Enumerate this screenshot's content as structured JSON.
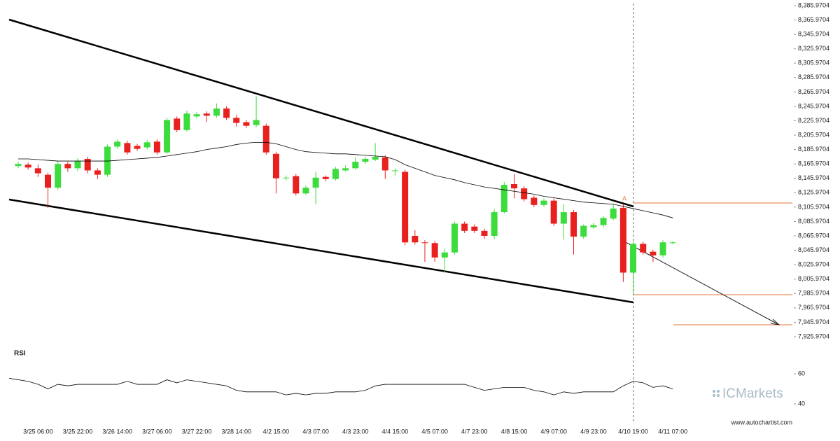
{
  "chart_data": {
    "type": "candlestick",
    "categories": [
      null,
      null,
      "3/25 06:00",
      null,
      null,
      null,
      "3/25 22:00",
      null,
      null,
      null,
      "3/26 14:00",
      null,
      null,
      null,
      "3/27 06:00",
      null,
      null,
      null,
      "3/27 22:00",
      null,
      null,
      null,
      "3/28 14:00",
      null,
      null,
      null,
      "4/2 15:00",
      null,
      null,
      null,
      "4/3 07:00",
      null,
      null,
      null,
      "4/3 23:00",
      null,
      null,
      null,
      "4/4 15:00",
      null,
      null,
      null,
      "4/5 07:00",
      null,
      null,
      null,
      "4/7 23:00",
      null,
      null,
      null,
      "4/8 15:00",
      null,
      null,
      null,
      "4/9 07:00",
      null,
      null,
      null,
      "4/9 23:00",
      null,
      null,
      null,
      "4/10 19:00",
      null,
      null,
      null,
      "4/11 07:00"
    ],
    "open": [
      8163,
      8165,
      8160,
      8151,
      8133,
      8166,
      8160,
      8173,
      8157,
      8151,
      8190,
      8195,
      8191,
      8189,
      8197,
      8182,
      8229,
      8213,
      8232,
      8236,
      8233,
      8243,
      8230,
      8224,
      8220,
      8219,
      8180,
      8146,
      8149,
      8125,
      8133,
      8148,
      8145,
      8157,
      8160,
      8169,
      8172,
      8175,
      8156,
      8155,
      8066,
      8057,
      8056,
      8036,
      8043,
      8083,
      8079,
      8073,
      8066,
      8099,
      8138,
      8132,
      8119,
      8109,
      8115,
      8083,
      8099,
      8065,
      8078,
      8081,
      8090,
      8105,
      8015,
      8055,
      8044,
      8039,
      8057
    ],
    "high": [
      8169,
      8168,
      8165,
      8154,
      8170,
      8169,
      8174,
      8176,
      8160,
      8193,
      8200,
      8198,
      8194,
      8199,
      8200,
      8230,
      8232,
      8240,
      8238,
      8239,
      8250,
      8246,
      8234,
      8227,
      8260,
      8222,
      8183,
      8150,
      8152,
      8136,
      8155,
      8150,
      8162,
      8164,
      8175,
      8176,
      8195,
      8178,
      8160,
      8158,
      8074,
      8060,
      8059,
      8048,
      8086,
      8086,
      8082,
      8076,
      8103,
      8141,
      8152,
      8135,
      8122,
      8118,
      8118,
      8110,
      8102,
      8082,
      8084,
      8094,
      8110,
      8110,
      8058,
      8058,
      8047,
      8060,
      8059
    ],
    "low": [
      8160,
      8158,
      8148,
      8105,
      8130,
      8155,
      8156,
      8153,
      8145,
      8148,
      8187,
      8179,
      8184,
      8186,
      8179,
      8180,
      8210,
      8211,
      8229,
      8224,
      8230,
      8227,
      8218,
      8216,
      8217,
      8179,
      8125,
      8143,
      8122,
      8123,
      8110,
      8142,
      8143,
      8155,
      8158,
      8166,
      8170,
      8145,
      8150,
      8053,
      8054,
      8030,
      8030,
      8015,
      8040,
      8070,
      8070,
      8062,
      8062,
      8097,
      8118,
      8114,
      8106,
      8106,
      8080,
      8061,
      8040,
      8062,
      8076,
      8078,
      8088,
      8002,
      7985,
      8040,
      8030,
      8036,
      8054
    ],
    "close": [
      8166,
      8161,
      8153,
      8133,
      8166,
      8160,
      8170,
      8157,
      8151,
      8190,
      8197,
      8182,
      8187,
      8196,
      8182,
      8227,
      8213,
      8236,
      8235,
      8233,
      8243,
      8230,
      8223,
      8219,
      8227,
      8182,
      8146,
      8147,
      8125,
      8133,
      8147,
      8145,
      8159,
      8160,
      8169,
      8173,
      8176,
      8157,
      8157,
      8057,
      8057,
      8056,
      8036,
      8043,
      8083,
      8073,
      8073,
      8066,
      8099,
      8137,
      8132,
      8117,
      8109,
      8115,
      8083,
      8099,
      8065,
      8080,
      8081,
      8091,
      8104,
      8015,
      8055,
      8043,
      8039,
      8057,
      8057
    ],
    "up_color": "#3ddc3d",
    "down_color": "#e8201e",
    "ma": {
      "color": "#000000",
      "values": [
        8173,
        8173,
        8172,
        8171,
        8170,
        8170,
        8170,
        8170,
        8170,
        8170,
        8171,
        8172,
        8173,
        8174,
        8175,
        8177,
        8179,
        8181,
        8183,
        8186,
        8188,
        8190,
        8193,
        8195,
        8196,
        8196,
        8194,
        8190,
        8186,
        8183,
        8182,
        8181,
        8180,
        8180,
        8179,
        8178,
        8177,
        8176,
        8172,
        8165,
        8160,
        8155,
        8150,
        8147,
        8144,
        8140,
        8137,
        8134,
        8132,
        8130,
        8128,
        8126,
        8124,
        8121,
        8119,
        8117,
        8115,
        8113,
        8112,
        8111,
        8110,
        8107,
        8104,
        8101,
        8098,
        8095,
        8091
      ]
    },
    "ylim": [
      7925.9704,
      8385.9704
    ],
    "yticks": [
      {
        "value": 8385.9704,
        "label": "8,385.9704"
      },
      {
        "value": 8365.9704,
        "label": "8,365.9704"
      },
      {
        "value": 8345.9704,
        "label": "8,345.9704"
      },
      {
        "value": 8325.9704,
        "label": "8,325.9704"
      },
      {
        "value": 8305.9704,
        "label": "8,305.9704"
      },
      {
        "value": 8285.9704,
        "label": "8,285.9704"
      },
      {
        "value": 8265.9704,
        "label": "8,265.9704"
      },
      {
        "value": 8245.9704,
        "label": "8,245.9704"
      },
      {
        "value": 8225.9704,
        "label": "8,225.9704"
      },
      {
        "value": 8205.9704,
        "label": "8,205.9704"
      },
      {
        "value": 8185.9704,
        "label": "8,185.9704"
      },
      {
        "value": 8165.9704,
        "label": "8,165.9704"
      },
      {
        "value": 8145.9704,
        "label": "8,145.9704"
      },
      {
        "value": 8125.9704,
        "label": "8,125.9704"
      },
      {
        "value": 8105.9704,
        "label": "8,105.9704"
      },
      {
        "value": 8085.9704,
        "label": "8,085.9704"
      },
      {
        "value": 8065.9704,
        "label": "8,065.9704"
      },
      {
        "value": 8045.9704,
        "label": "8,045.9704"
      },
      {
        "value": 8025.9704,
        "label": "8,025.9704"
      },
      {
        "value": 8005.9704,
        "label": "8,005.9704"
      },
      {
        "value": 7985.9704,
        "label": "7,985.9704"
      },
      {
        "value": 7965.9704,
        "label": "7,965.9704"
      },
      {
        "value": 7945.9704,
        "label": "7,945.9704"
      },
      {
        "value": 7925.9704,
        "label": "7,925.9704"
      }
    ],
    "pattern_label": "A",
    "rsi": {
      "label": "RSI",
      "color": "#000000",
      "ylim": [
        40,
        60
      ],
      "yticks": [
        60,
        40
      ],
      "values": [
        57,
        55,
        53,
        50,
        53,
        52,
        53,
        53,
        53,
        53,
        53,
        55,
        53,
        53,
        53,
        56,
        54,
        56,
        55,
        54,
        53,
        52,
        49,
        48,
        48,
        48,
        48,
        46,
        47,
        46,
        47,
        47,
        48,
        48,
        48,
        49,
        52,
        53,
        53,
        53,
        53,
        53,
        53,
        53,
        53,
        53,
        51,
        49,
        50,
        51,
        51,
        51,
        49,
        48,
        46,
        48,
        47,
        48,
        48,
        48,
        48,
        52,
        55,
        54,
        51,
        52,
        50
      ]
    }
  },
  "footer": "www.autochartist.com",
  "logo": {
    "prefix": "IC",
    "name": "Markets"
  }
}
